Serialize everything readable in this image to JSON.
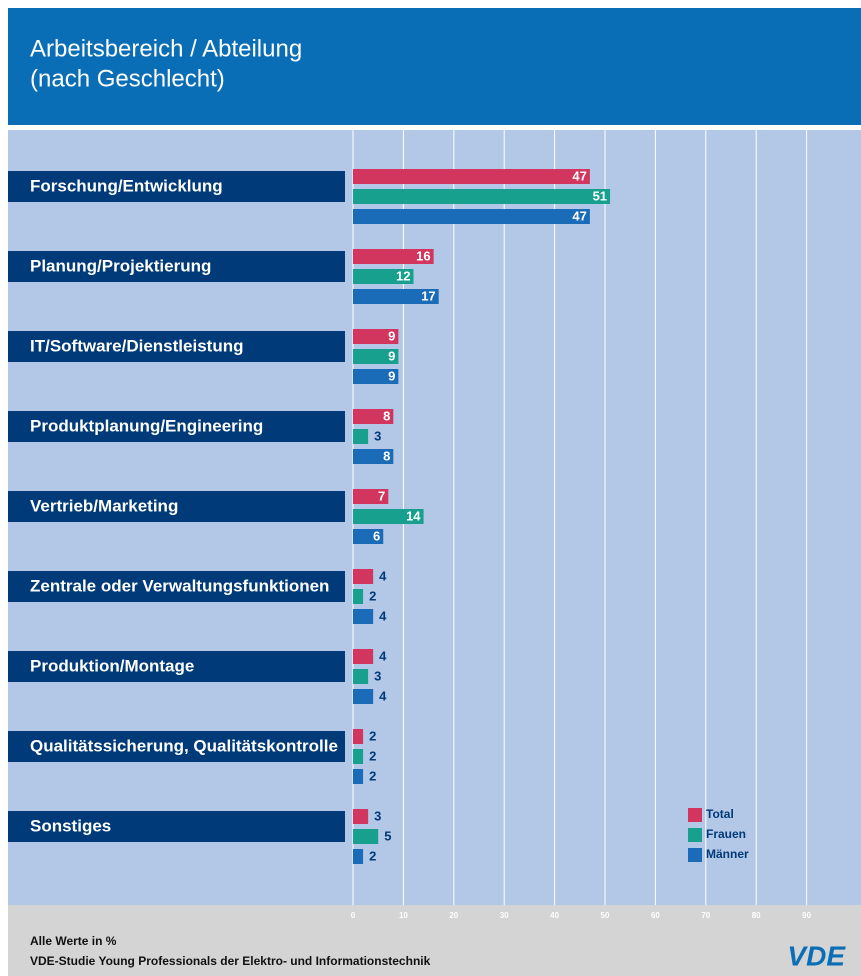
{
  "chart_data": {
    "type": "bar",
    "orientation": "horizontal",
    "title": "Arbeitsbereich / Abteilung",
    "subtitle": "(nach Geschlecht)",
    "categories": [
      "Forschung/Entwicklung",
      "Planung/Projektierung",
      "IT/Software/Dienstleistung",
      "Produktplanung/Engineering",
      "Vertrieb/Marketing",
      "Zentrale oder Verwaltungsfunktionen",
      "Produktion/Montage",
      "Qualitätssicherung, Qualitätskontrolle",
      "Sonstiges"
    ],
    "series": [
      {
        "name": "Total",
        "color": "#d2365e",
        "values": [
          47,
          16,
          9,
          8,
          7,
          4,
          4,
          2,
          3
        ]
      },
      {
        "name": "Frauen",
        "color": "#17a08e",
        "values": [
          51,
          12,
          9,
          3,
          14,
          2,
          3,
          2,
          5
        ]
      },
      {
        "name": "Männer",
        "color": "#1a6cb8",
        "values": [
          47,
          17,
          9,
          8,
          6,
          4,
          4,
          2,
          2
        ]
      }
    ],
    "xlim": [
      0,
      100
    ],
    "xticks": [
      0,
      10,
      20,
      30,
      40,
      50,
      60,
      70,
      80,
      90
    ],
    "grid": true,
    "legend": "lower right",
    "footnote": "Alle Werte in %",
    "source": "VDE-Studie Young Professionals der Elektro- und Informationstechnik",
    "logo": "VDE"
  }
}
